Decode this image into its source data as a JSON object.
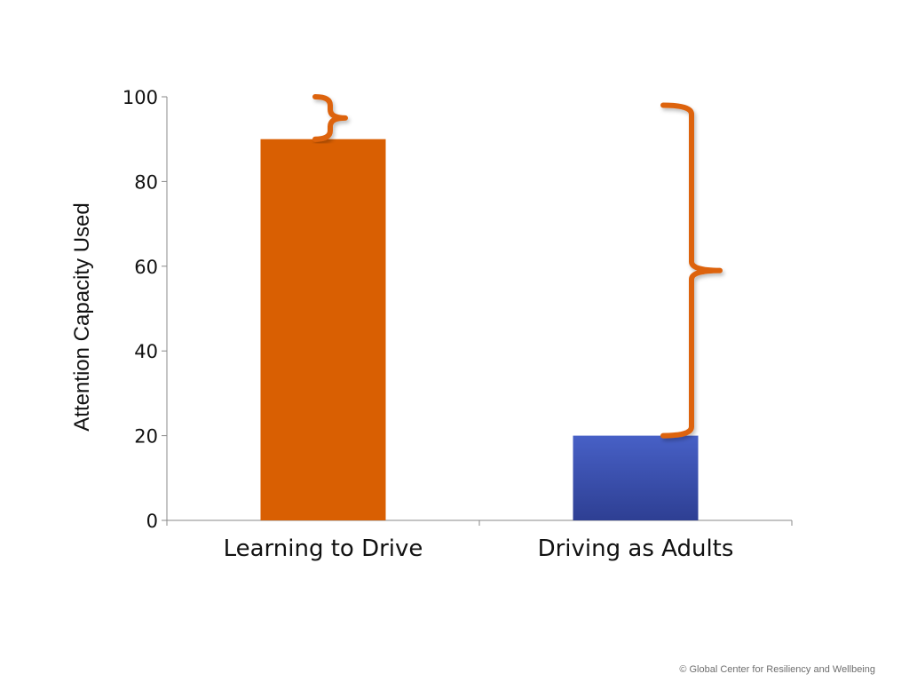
{
  "chart_data": {
    "type": "bar",
    "title": "",
    "categories": [
      "Learning to Drive",
      "Driving as Adults"
    ],
    "values": [
      90,
      20
    ],
    "ylabel": "Attention Capacity Used",
    "xlabel": "",
    "ylim": [
      0,
      100
    ],
    "yticks": [
      0,
      20,
      40,
      60,
      80,
      100
    ],
    "grid": false,
    "legend": "none",
    "colors": [
      "#d95f02",
      "#3c53b4"
    ],
    "annotations": [
      {
        "type": "brace",
        "category": "Learning to Drive",
        "from": 90,
        "to": 100,
        "color": "#dd6410"
      },
      {
        "type": "brace",
        "category": "Driving as Adults",
        "from": 20,
        "to": 98,
        "color": "#dd6410"
      }
    ]
  },
  "footer": {
    "copyright": "© Global Center for Resiliency and Wellbeing"
  }
}
